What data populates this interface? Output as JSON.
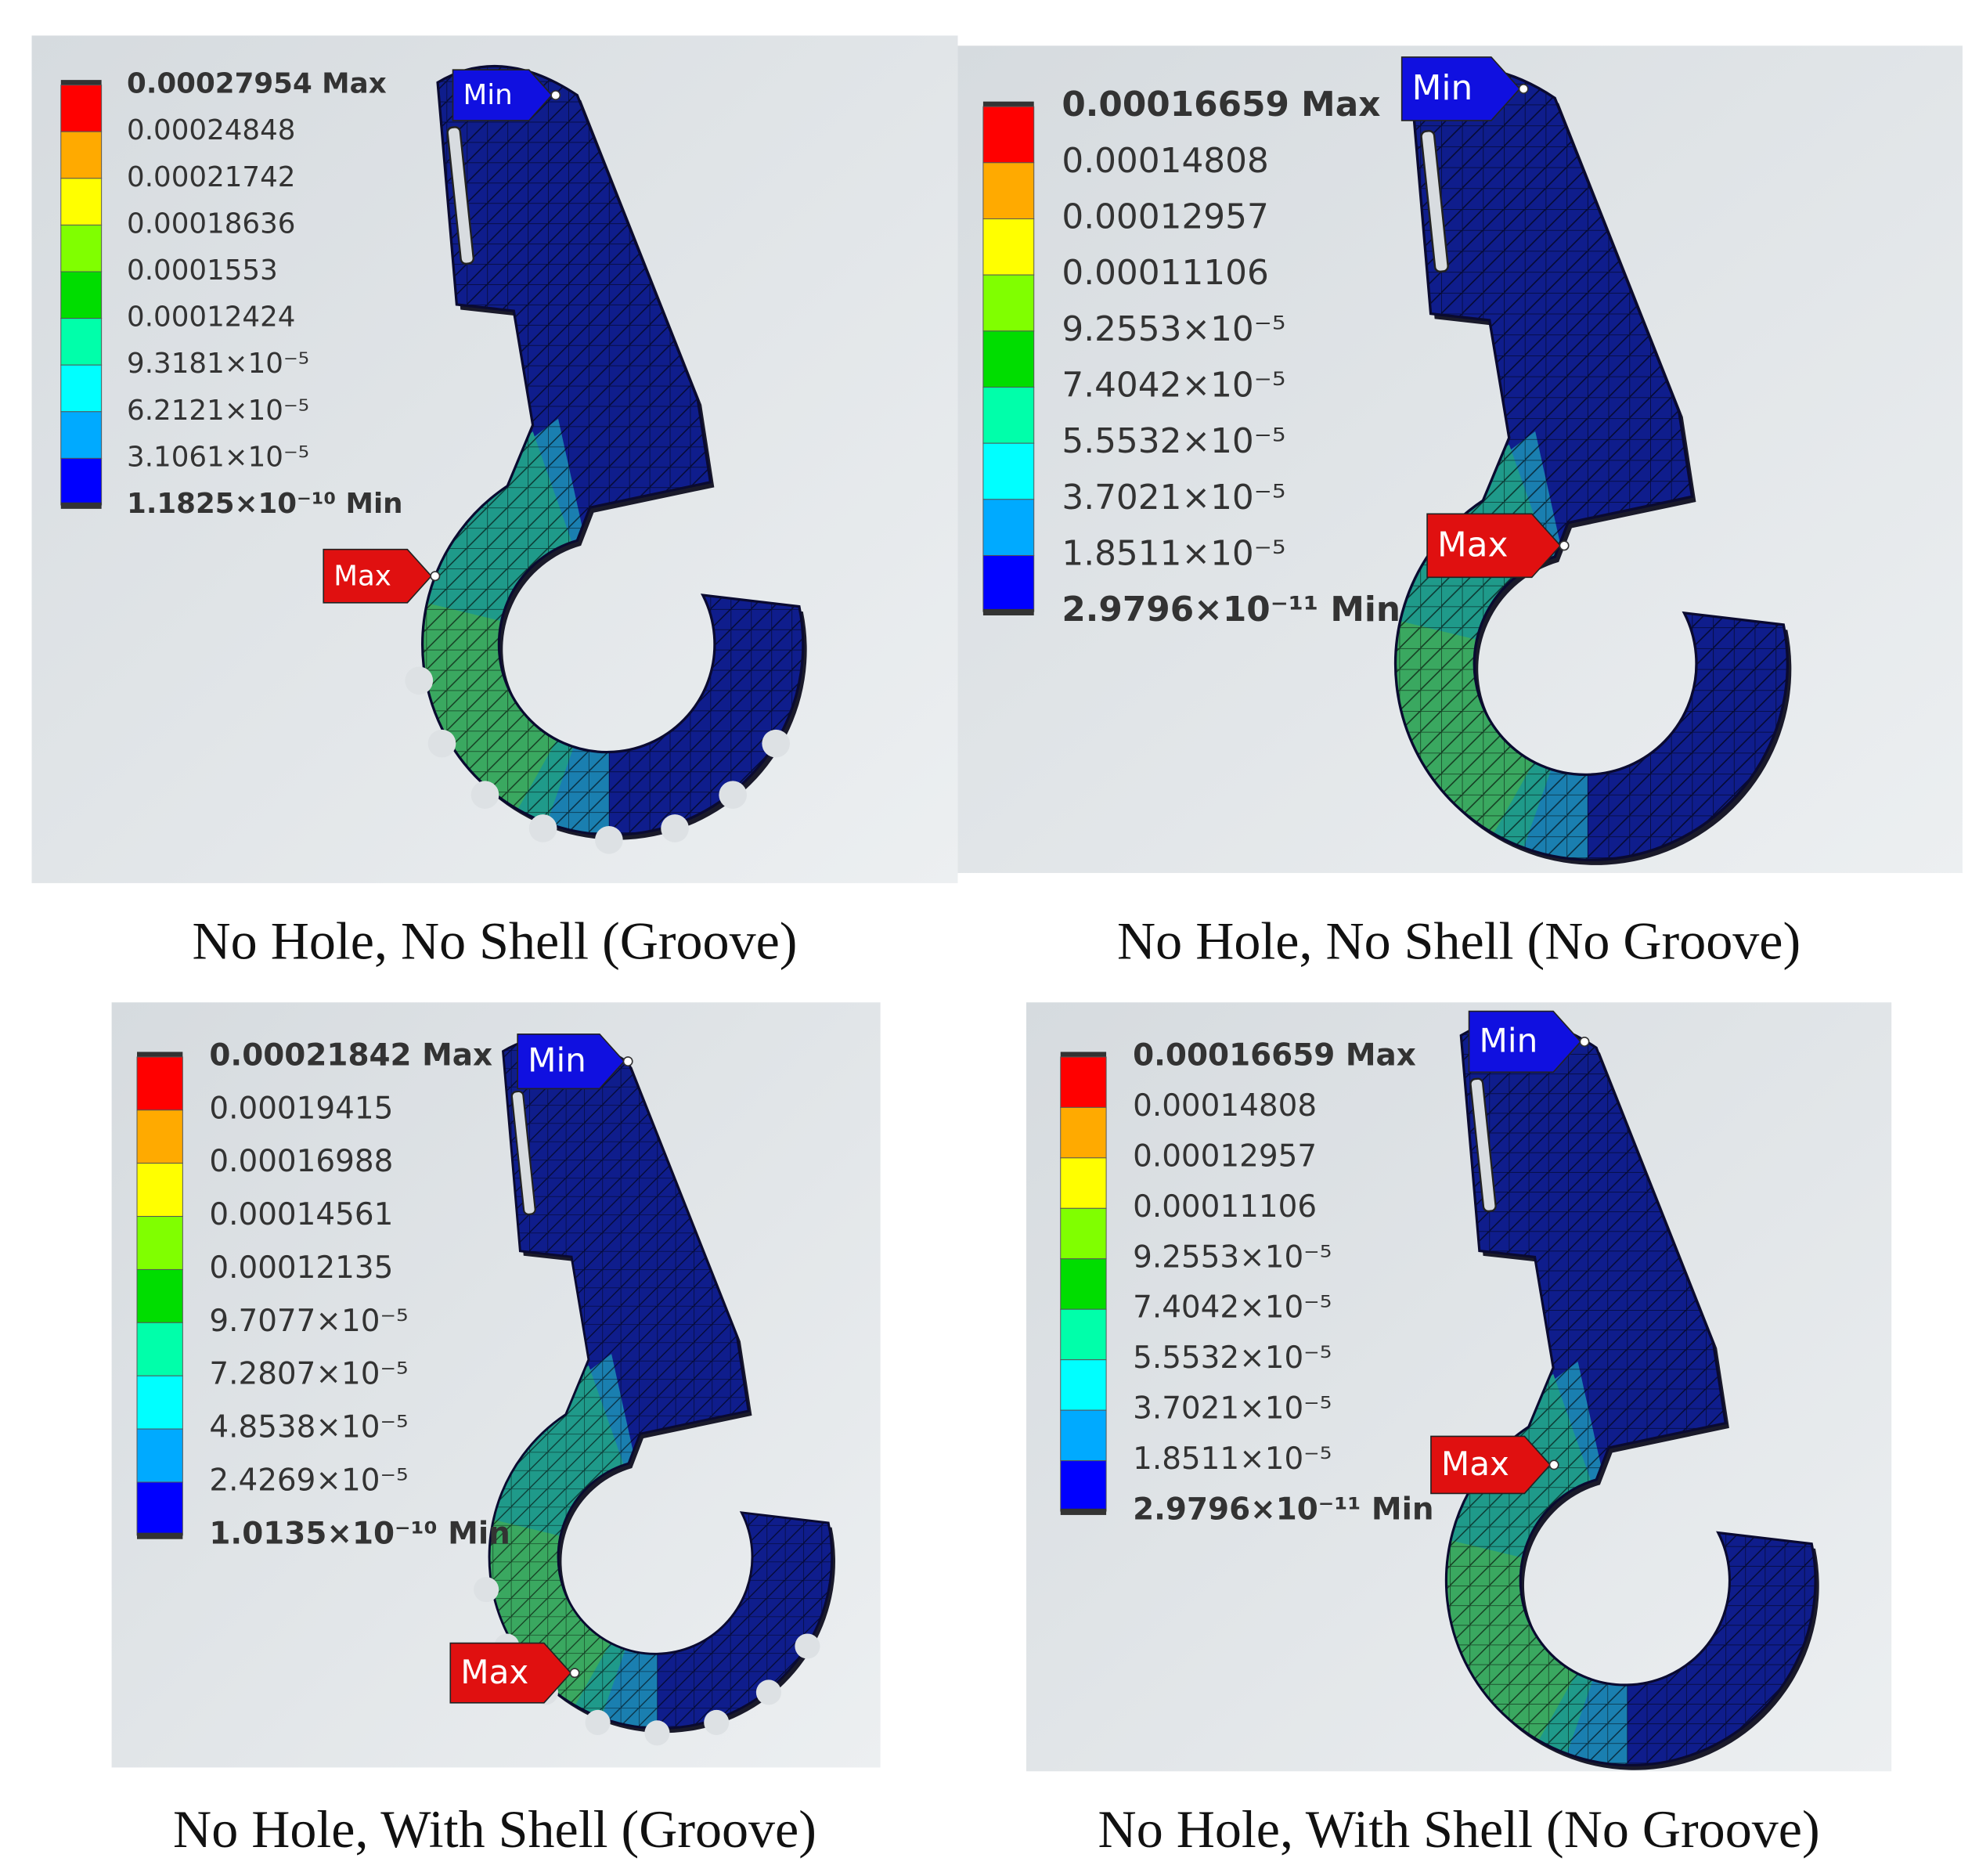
{
  "colormap": [
    "#ff0000",
    "#ffaa00",
    "#ffff00",
    "#80ff00",
    "#00dd00",
    "#00ffaa",
    "#00ffff",
    "#00aaff",
    "#0000ff"
  ],
  "panels": [
    {
      "caption": "No Hole, No Shell (Groove)",
      "legend": [
        "0.00027954 Max",
        "0.00024848",
        "0.00021742",
        "0.00018636",
        "0.0001553",
        "0.00012424",
        "9.3181×10⁻⁵",
        "6.2121×10⁻⁵",
        "3.1061×10⁻⁵",
        "1.1825×10⁻¹⁰ Min"
      ],
      "min_marker": "Min",
      "max_marker": "Max"
    },
    {
      "caption": "No Hole, No Shell (No Groove)",
      "legend": [
        "0.00016659 Max",
        "0.00014808",
        "0.00012957",
        "0.00011106",
        "9.2553×10⁻⁵",
        "7.4042×10⁻⁵",
        "5.5532×10⁻⁵",
        "3.7021×10⁻⁵",
        "1.8511×10⁻⁵",
        "2.9796×10⁻¹¹ Min"
      ],
      "min_marker": "Min",
      "max_marker": "Max"
    },
    {
      "caption": "No Hole, With Shell (Groove)",
      "legend": [
        "0.00021842 Max",
        "0.00019415",
        "0.00016988",
        "0.00014561",
        "0.00012135",
        "9.7077×10⁻⁵",
        "7.2807×10⁻⁵",
        "4.8538×10⁻⁵",
        "2.4269×10⁻⁵",
        "1.0135×10⁻¹⁰ Min"
      ],
      "min_marker": "Min",
      "max_marker": "Max"
    },
    {
      "caption": "No Hole, With Shell (No Groove)",
      "legend": [
        "0.00016659 Max",
        "0.00014808",
        "0.00012957",
        "0.00011106",
        "9.2553×10⁻⁵",
        "7.4042×10⁻⁵",
        "5.5532×10⁻⁵",
        "3.7021×10⁻⁵",
        "1.8511×10⁻⁵",
        "2.9796×10⁻¹¹ Min"
      ],
      "min_marker": "Min",
      "max_marker": "Max"
    }
  ]
}
